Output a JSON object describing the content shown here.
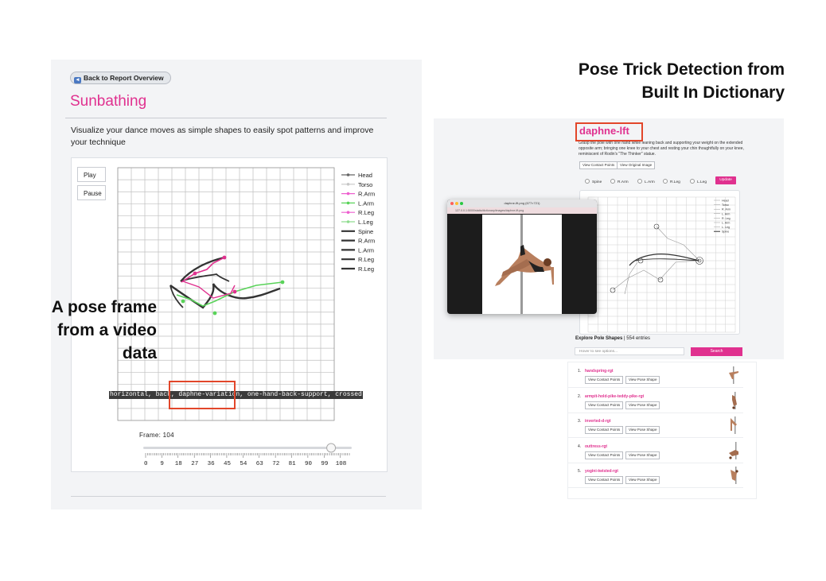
{
  "left_app": {
    "back_button": "Back to Report Overview",
    "title": "Sunbathing",
    "description": "Visualize your dance moves as simple shapes to easily spot patterns and improve your technique",
    "controls": {
      "play": "Play",
      "pause": "Pause"
    },
    "legend": [
      "Head",
      "Torso",
      "R.Arm",
      "L.Arm",
      "R.Leg",
      "L.Leg",
      "Spine",
      "R.Arm",
      "L.Arm",
      "R.Leg",
      "R.Leg"
    ],
    "tags": "horizontal, back, daphne-variation, one-hand-back-support, crossed",
    "frame_label": "Frame: 104",
    "frame_value": 104,
    "frame_max": 113,
    "ticks": [
      "0",
      "9",
      "18",
      "27",
      "36",
      "45",
      "54",
      "63",
      "72",
      "81",
      "90",
      "99",
      "108"
    ]
  },
  "annotations": {
    "left": [
      "A pose frame",
      "from a video",
      "data"
    ],
    "right": [
      "Pose Trick Detection from",
      "Built In Dictionary"
    ]
  },
  "right_app": {
    "trick_title": "daphne-lft",
    "trick_desc": "Grasp the pole with one hand while leaning back and supporting your weight on the extended opposite arm; bringing one knee to your chest and resting your chin thoughtfully on your knee, reminiscent of Rodin's \"The Thinker\" statue.",
    "buttons": {
      "contact": "View Contact Points",
      "original": "View Original Image"
    },
    "parts": [
      "Spine",
      "R.Arm",
      "L.Arm",
      "R.Leg",
      "L.Leg"
    ],
    "update": "Update",
    "plot_legend": [
      "Head",
      "Torso",
      "R. Arm",
      "L. Arm",
      "R. Leg",
      "L. Arm",
      "L. Leg",
      "Spine"
    ],
    "explore_title": "Explore Pole Shapes",
    "explore_count": "554 entries",
    "search_placeholder": "Hover to see options...",
    "search_button": "Search",
    "results": [
      {
        "num": "1.",
        "name": "handspring-rgt"
      },
      {
        "num": "2.",
        "name": "armpit-hold-pike-teddy-pike-rgt"
      },
      {
        "num": "3.",
        "name": "inverted-d-rgt"
      },
      {
        "num": "4.",
        "name": "outtress-rgt"
      },
      {
        "num": "5.",
        "name": "yogini-twisted-rgt"
      }
    ],
    "result_buttons": {
      "contact": "View Contact Points",
      "shape": "View Pose Shape"
    }
  },
  "pole_window": {
    "title": "daphne-lft.png (677×721)",
    "url": "127.0.0.1:5000/static/dictionary/images/daphne-lft.png"
  },
  "colors": {
    "pink": "#e0318f",
    "red_box": "#e2462a",
    "green": "#5ad35a",
    "dark": "#333333"
  }
}
